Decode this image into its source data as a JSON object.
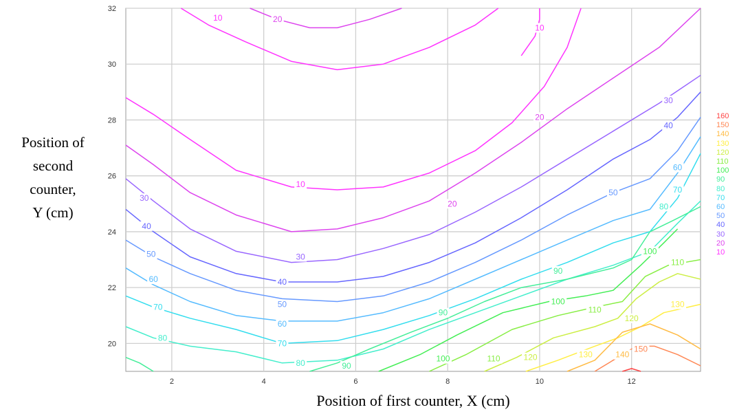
{
  "chart_data": {
    "type": "contour",
    "xlabel": "Position of first counter, X (cm)",
    "ylabel": "Position of\nsecond\ncounter,\nY (cm)",
    "xlim": [
      1,
      13.5
    ],
    "ylim": [
      19,
      32
    ],
    "xticks": [
      2,
      4,
      6,
      8,
      10,
      12
    ],
    "yticks": [
      20,
      22,
      24,
      26,
      28,
      30,
      32
    ],
    "grid": true,
    "legend_position": "right",
    "levels": [
      {
        "value": 10,
        "label": "10",
        "color": "#ff33ff"
      },
      {
        "value": 20,
        "label": "20",
        "color": "#dd44ee"
      },
      {
        "value": 30,
        "label": "30",
        "color": "#9966ff"
      },
      {
        "value": 40,
        "label": "40",
        "color": "#6666ff"
      },
      {
        "value": 50,
        "label": "50",
        "color": "#6699ff"
      },
      {
        "value": 60,
        "label": "60",
        "color": "#55bbff"
      },
      {
        "value": 70,
        "label": "70",
        "color": "#33ddee"
      },
      {
        "value": 80,
        "label": "80",
        "color": "#44eecc"
      },
      {
        "value": 90,
        "label": "90",
        "color": "#44ee99"
      },
      {
        "value": 100,
        "label": "100",
        "color": "#44ee55"
      },
      {
        "value": 110,
        "label": "110",
        "color": "#88ee44"
      },
      {
        "value": 120,
        "label": "120",
        "color": "#ccee44"
      },
      {
        "value": 130,
        "label": "130",
        "color": "#ffee44"
      },
      {
        "value": 140,
        "label": "140",
        "color": "#ffbb44"
      },
      {
        "value": 150,
        "label": "150",
        "color": "#ff8855"
      },
      {
        "value": 160,
        "label": "160",
        "color": "#ff4444"
      }
    ],
    "contours": [
      {
        "level": 10,
        "points": [
          [
            2.2,
            32
          ],
          [
            2.8,
            31.4
          ],
          [
            3.6,
            30.8
          ],
          [
            4.6,
            30.1
          ],
          [
            5.6,
            29.8
          ],
          [
            6.6,
            30.0
          ],
          [
            7.6,
            30.6
          ],
          [
            8.6,
            31.4
          ],
          [
            9.1,
            32
          ]
        ]
      },
      {
        "level": 20,
        "points": [
          [
            3.7,
            32
          ],
          [
            4.3,
            31.6
          ],
          [
            5.0,
            31.3
          ],
          [
            5.6,
            31.3
          ],
          [
            6.3,
            31.6
          ],
          [
            7.0,
            32
          ]
        ]
      },
      {
        "level": 10,
        "points": [
          [
            10.0,
            32
          ],
          [
            10.0,
            31.6
          ],
          [
            9.9,
            31.0
          ],
          [
            9.6,
            30.3
          ]
        ]
      },
      {
        "level": 10,
        "points": [
          [
            1.0,
            28.8
          ],
          [
            1.6,
            28.2
          ],
          [
            2.4,
            27.3
          ],
          [
            3.4,
            26.2
          ],
          [
            4.6,
            25.6
          ],
          [
            5.6,
            25.5
          ],
          [
            6.6,
            25.6
          ],
          [
            7.6,
            26.1
          ],
          [
            8.6,
            26.9
          ],
          [
            9.4,
            27.9
          ],
          [
            10.1,
            29.2
          ],
          [
            10.6,
            30.6
          ],
          [
            10.9,
            32
          ]
        ]
      },
      {
        "level": 20,
        "points": [
          [
            1.0,
            27.1
          ],
          [
            1.6,
            26.4
          ],
          [
            2.4,
            25.4
          ],
          [
            3.4,
            24.6
          ],
          [
            4.6,
            24.0
          ],
          [
            5.6,
            24.1
          ],
          [
            6.6,
            24.5
          ],
          [
            7.6,
            25.1
          ],
          [
            8.6,
            26.1
          ],
          [
            9.6,
            27.2
          ],
          [
            10.6,
            28.4
          ],
          [
            11.6,
            29.5
          ],
          [
            12.6,
            30.6
          ],
          [
            13.5,
            32
          ]
        ]
      },
      {
        "level": 30,
        "points": [
          [
            1.0,
            25.9
          ],
          [
            1.6,
            25.1
          ],
          [
            2.4,
            24.1
          ],
          [
            3.4,
            23.3
          ],
          [
            4.6,
            22.9
          ],
          [
            5.6,
            23.0
          ],
          [
            6.6,
            23.4
          ],
          [
            7.6,
            23.9
          ],
          [
            8.6,
            24.7
          ],
          [
            9.6,
            25.6
          ],
          [
            10.6,
            26.6
          ],
          [
            11.6,
            27.6
          ],
          [
            12.6,
            28.6
          ],
          [
            13.5,
            29.6
          ]
        ]
      },
      {
        "level": 40,
        "points": [
          [
            1.0,
            24.8
          ],
          [
            1.6,
            24.0
          ],
          [
            2.4,
            23.1
          ],
          [
            3.4,
            22.5
          ],
          [
            4.4,
            22.2
          ],
          [
            5.6,
            22.2
          ],
          [
            6.6,
            22.4
          ],
          [
            7.6,
            22.9
          ],
          [
            8.6,
            23.6
          ],
          [
            9.6,
            24.5
          ],
          [
            10.6,
            25.5
          ],
          [
            11.6,
            26.6
          ],
          [
            12.4,
            27.3
          ],
          [
            13.0,
            28.1
          ],
          [
            13.5,
            29.0
          ]
        ]
      },
      {
        "level": 50,
        "points": [
          [
            1.0,
            23.7
          ],
          [
            1.6,
            23.1
          ],
          [
            2.4,
            22.5
          ],
          [
            3.4,
            21.9
          ],
          [
            4.4,
            21.6
          ],
          [
            5.6,
            21.5
          ],
          [
            6.6,
            21.7
          ],
          [
            7.6,
            22.2
          ],
          [
            8.6,
            22.9
          ],
          [
            9.6,
            23.7
          ],
          [
            10.6,
            24.6
          ],
          [
            11.6,
            25.4
          ],
          [
            12.4,
            25.9
          ],
          [
            13.0,
            26.9
          ],
          [
            13.5,
            28.1
          ]
        ]
      },
      {
        "level": 60,
        "points": [
          [
            1.0,
            22.7
          ],
          [
            1.6,
            22.1
          ],
          [
            2.4,
            21.5
          ],
          [
            3.4,
            21.0
          ],
          [
            4.4,
            20.8
          ],
          [
            5.6,
            20.8
          ],
          [
            6.6,
            21.1
          ],
          [
            7.6,
            21.6
          ],
          [
            8.6,
            22.3
          ],
          [
            9.6,
            23.0
          ],
          [
            10.6,
            23.7
          ],
          [
            11.6,
            24.4
          ],
          [
            12.4,
            24.8
          ],
          [
            13.0,
            26.1
          ],
          [
            13.5,
            27.4
          ]
        ]
      },
      {
        "level": 70,
        "points": [
          [
            1.0,
            21.7
          ],
          [
            1.6,
            21.3
          ],
          [
            2.4,
            20.9
          ],
          [
            3.4,
            20.5
          ],
          [
            4.4,
            20.0
          ],
          [
            5.6,
            20.1
          ],
          [
            6.6,
            20.5
          ],
          [
            7.6,
            21.0
          ],
          [
            8.6,
            21.6
          ],
          [
            9.6,
            22.3
          ],
          [
            10.6,
            22.9
          ],
          [
            11.6,
            23.6
          ],
          [
            12.4,
            24.0
          ],
          [
            13.0,
            25.2
          ],
          [
            13.5,
            26.8
          ]
        ]
      },
      {
        "level": 80,
        "points": [
          [
            1.0,
            20.6
          ],
          [
            1.6,
            20.2
          ],
          [
            2.4,
            19.9
          ],
          [
            3.4,
            19.7
          ],
          [
            4.4,
            19.3
          ],
          [
            5.6,
            19.4
          ],
          [
            6.6,
            19.8
          ],
          [
            7.6,
            20.5
          ],
          [
            8.6,
            21.1
          ],
          [
            9.6,
            21.7
          ],
          [
            10.6,
            22.3
          ],
          [
            11.6,
            22.8
          ],
          [
            12.4,
            23.3
          ],
          [
            13.0,
            24.3
          ],
          [
            13.5,
            25.1
          ]
        ]
      },
      {
        "level": 90,
        "points": [
          [
            1.0,
            19.5
          ],
          [
            1.3,
            19.3
          ],
          [
            1.6,
            19.0
          ]
        ]
      },
      {
        "level": 90,
        "points": [
          [
            5.0,
            19.0
          ],
          [
            5.6,
            19.3
          ],
          [
            6.3,
            19.8
          ],
          [
            7.2,
            20.4
          ],
          [
            8.0,
            20.9
          ],
          [
            8.8,
            21.5
          ],
          [
            9.6,
            22.0
          ],
          [
            10.6,
            22.3
          ],
          [
            11.6,
            22.7
          ],
          [
            12.0,
            23.0
          ],
          [
            12.4,
            24.0
          ],
          [
            12.9,
            24.4
          ],
          [
            13.5,
            24.9
          ]
        ]
      },
      {
        "level": 100,
        "points": [
          [
            6.5,
            19.0
          ],
          [
            7.4,
            19.6
          ],
          [
            8.2,
            20.3
          ],
          [
            9.2,
            21.1
          ],
          [
            10.2,
            21.5
          ],
          [
            11.0,
            21.7
          ],
          [
            11.6,
            21.9
          ],
          [
            12.2,
            22.8
          ],
          [
            12.7,
            23.6
          ],
          [
            13.0,
            24.1
          ]
        ]
      },
      {
        "level": 110,
        "points": [
          [
            7.6,
            19.0
          ],
          [
            8.4,
            19.6
          ],
          [
            9.4,
            20.5
          ],
          [
            10.4,
            21.0
          ],
          [
            11.2,
            21.3
          ],
          [
            11.8,
            21.5
          ],
          [
            12.3,
            22.4
          ],
          [
            12.8,
            22.8
          ],
          [
            13.5,
            23.0
          ]
        ]
      },
      {
        "level": 120,
        "points": [
          [
            8.8,
            19.0
          ],
          [
            9.5,
            19.5
          ],
          [
            10.3,
            20.2
          ],
          [
            11.2,
            20.6
          ],
          [
            11.7,
            20.9
          ],
          [
            12.1,
            21.6
          ],
          [
            12.6,
            22.2
          ],
          [
            13.0,
            22.5
          ],
          [
            13.5,
            22.3
          ]
        ]
      },
      {
        "level": 130,
        "points": [
          [
            9.7,
            19.0
          ],
          [
            10.4,
            19.4
          ],
          [
            11.2,
            19.9
          ],
          [
            11.7,
            20.2
          ],
          [
            12.2,
            20.6
          ],
          [
            12.7,
            21.1
          ],
          [
            13.5,
            21.4
          ]
        ]
      },
      {
        "level": 140,
        "points": [
          [
            10.6,
            19.0
          ],
          [
            11.2,
            19.4
          ],
          [
            11.8,
            20.4
          ],
          [
            12.4,
            20.7
          ],
          [
            13.0,
            20.3
          ],
          [
            13.5,
            19.8
          ]
        ]
      },
      {
        "level": 150,
        "points": [
          [
            11.2,
            19.0
          ],
          [
            11.6,
            19.4
          ],
          [
            12.1,
            19.9
          ],
          [
            12.5,
            19.9
          ],
          [
            13.0,
            19.6
          ],
          [
            13.5,
            19.2
          ]
        ]
      },
      {
        "level": 160,
        "points": [
          [
            11.8,
            19.0
          ],
          [
            12.0,
            19.1
          ],
          [
            12.2,
            19.0
          ]
        ]
      }
    ],
    "contour_labels": [
      {
        "text": "10",
        "level": 10,
        "x": 3.0,
        "y": 31.65
      },
      {
        "text": "20",
        "level": 20,
        "x": 4.3,
        "y": 31.6
      },
      {
        "text": "10",
        "level": 10,
        "x": 10.0,
        "y": 31.3
      },
      {
        "text": "30",
        "level": 30,
        "x": 12.8,
        "y": 28.7
      },
      {
        "text": "20",
        "level": 20,
        "x": 10.0,
        "y": 28.1
      },
      {
        "text": "40",
        "level": 40,
        "x": 12.8,
        "y": 27.8
      },
      {
        "text": "10",
        "level": 10,
        "x": 4.8,
        "y": 25.7
      },
      {
        "text": "30",
        "level": 30,
        "x": 1.4,
        "y": 25.2
      },
      {
        "text": "20",
        "level": 20,
        "x": 8.1,
        "y": 25.0
      },
      {
        "text": "50",
        "level": 50,
        "x": 11.6,
        "y": 25.4
      },
      {
        "text": "60",
        "level": 60,
        "x": 13.0,
        "y": 26.3
      },
      {
        "text": "70",
        "level": 70,
        "x": 13.0,
        "y": 25.5
      },
      {
        "text": "80",
        "level": 80,
        "x": 12.7,
        "y": 24.9
      },
      {
        "text": "40",
        "level": 40,
        "x": 1.45,
        "y": 24.2
      },
      {
        "text": "30",
        "level": 30,
        "x": 4.8,
        "y": 23.1
      },
      {
        "text": "50",
        "level": 50,
        "x": 1.55,
        "y": 23.2
      },
      {
        "text": "100",
        "level": 100,
        "x": 12.4,
        "y": 23.3
      },
      {
        "text": "110",
        "level": 110,
        "x": 13.0,
        "y": 22.9
      },
      {
        "text": "40",
        "level": 40,
        "x": 4.4,
        "y": 22.2
      },
      {
        "text": "60",
        "level": 60,
        "x": 1.6,
        "y": 22.3
      },
      {
        "text": "90",
        "level": 90,
        "x": 10.4,
        "y": 22.6
      },
      {
        "text": "50",
        "level": 50,
        "x": 4.4,
        "y": 21.4
      },
      {
        "text": "70",
        "level": 70,
        "x": 1.7,
        "y": 21.3
      },
      {
        "text": "100",
        "level": 100,
        "x": 10.4,
        "y": 21.5
      },
      {
        "text": "90",
        "level": 90,
        "x": 7.9,
        "y": 21.1
      },
      {
        "text": "110",
        "level": 110,
        "x": 11.2,
        "y": 21.2
      },
      {
        "text": "130",
        "level": 130,
        "x": 13.0,
        "y": 21.4
      },
      {
        "text": "60",
        "level": 60,
        "x": 4.4,
        "y": 20.7
      },
      {
        "text": "120",
        "level": 120,
        "x": 12.0,
        "y": 20.9
      },
      {
        "text": "80",
        "level": 80,
        "x": 1.8,
        "y": 20.2
      },
      {
        "text": "70",
        "level": 70,
        "x": 4.4,
        "y": 20.0
      },
      {
        "text": "80",
        "level": 80,
        "x": 4.8,
        "y": 19.3
      },
      {
        "text": "90",
        "level": 90,
        "x": 5.8,
        "y": 19.2
      },
      {
        "text": "100",
        "level": 100,
        "x": 7.9,
        "y": 19.45
      },
      {
        "text": "110",
        "level": 110,
        "x": 9.0,
        "y": 19.45
      },
      {
        "text": "120",
        "level": 120,
        "x": 9.8,
        "y": 19.5
      },
      {
        "text": "130",
        "level": 130,
        "x": 11.0,
        "y": 19.6
      },
      {
        "text": "140",
        "level": 140,
        "x": 11.8,
        "y": 19.6
      },
      {
        "text": "150",
        "level": 150,
        "x": 12.2,
        "y": 19.8
      }
    ]
  }
}
